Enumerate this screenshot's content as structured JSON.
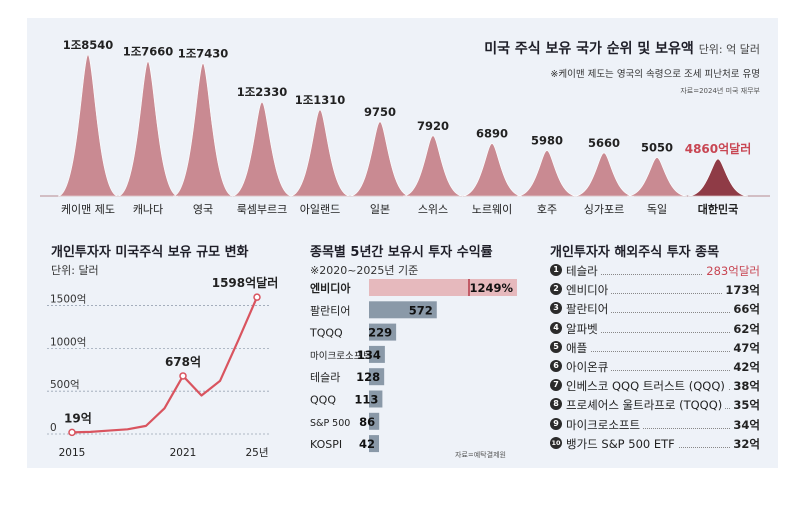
{
  "title": "미국 주식 보유 국가 순위 및 보유액",
  "title_unit": "단위: 억 달러",
  "note": "※케이맨 제도는 영국의 속령으로 조세 피난처로 유명",
  "source_top": "자료=2024년 미국 재무부",
  "colors": {
    "peak": "#c27880",
    "peak_korea": "#8f3b46",
    "bar": "#8a99a8",
    "bar_highlight": "#e6b9bd",
    "line": "#d9545f",
    "accent_text": "#c84653"
  },
  "chart_data": [
    {
      "type": "area",
      "categories": [
        "케이맨 제도",
        "캐나다",
        "영국",
        "룩셈부르크",
        "아일랜드",
        "일본",
        "스위스",
        "노르웨이",
        "호주",
        "싱가포르",
        "독일",
        "대한민국"
      ],
      "values": [
        18540,
        17660,
        17430,
        12330,
        11310,
        9750,
        7920,
        6890,
        5980,
        5660,
        5050,
        4860
      ],
      "value_labels": [
        "1조8540",
        "1조7660",
        "1조7430",
        "1조2330",
        "1조1310",
        "9750",
        "7920",
        "6890",
        "5980",
        "5660",
        "5050",
        "4860억달러"
      ],
      "highlight": "대한민국"
    },
    {
      "type": "line",
      "title": "개인투자자 미국주식 보유 규모 변화",
      "subtitle": "단위: 달러",
      "x": [
        2015,
        2016,
        2017,
        2018,
        2019,
        2020,
        2021,
        2022,
        2023,
        2024,
        2025
      ],
      "values": [
        19,
        25,
        40,
        55,
        95,
        300,
        678,
        450,
        620,
        1100,
        1598
      ],
      "ylim": [
        0,
        1600
      ],
      "y_ticks": [
        0,
        500,
        1000,
        1500
      ],
      "y_tick_labels": [
        "0",
        "500억",
        "1000억",
        "1500억"
      ],
      "x_tick_labels": [
        "2015",
        "2021",
        "25년"
      ],
      "x_tick_values": [
        2015,
        2021,
        2025
      ],
      "point_labels": [
        {
          "x": 2015,
          "label": "19억"
        },
        {
          "x": 2021,
          "label": "678억"
        },
        {
          "x": 2025,
          "label": "1598억달러"
        }
      ]
    },
    {
      "type": "bar",
      "title": "종목별 5년간 보유시 투자 수익률",
      "subtitle": "※2020~2025년 기준",
      "categories": [
        "엔비디아",
        "팔란티어",
        "TQQQ",
        "마이크로소프트",
        "테슬라",
        "QQQ",
        "S&P 500",
        "KOSPI"
      ],
      "values": [
        1249,
        572,
        229,
        134,
        128,
        113,
        86,
        42
      ],
      "value_labels": [
        "1249%",
        "572",
        "229",
        "134",
        "128",
        "113",
        "86",
        "42"
      ],
      "source": "자료=예탁결제원"
    }
  ],
  "ranking": {
    "title": "개인투자자 해외주식 투자 종목",
    "items": [
      {
        "num": "1",
        "name": "테슬라",
        "value": "283억달러",
        "highlight": true
      },
      {
        "num": "2",
        "name": "엔비디아",
        "value": "173억"
      },
      {
        "num": "3",
        "name": "팔란티어",
        "value": "66억"
      },
      {
        "num": "4",
        "name": "알파벳",
        "value": "62억"
      },
      {
        "num": "5",
        "name": "애플",
        "value": "47억"
      },
      {
        "num": "6",
        "name": "아이온큐",
        "value": "42억"
      },
      {
        "num": "7",
        "name": "인베스코 QQQ 트러스트 (QQQ)",
        "value": "38억"
      },
      {
        "num": "8",
        "name": "프로셰어스 울트라프로 (TQQQ)",
        "value": "35억"
      },
      {
        "num": "9",
        "name": "마이크로소프트",
        "value": "34억"
      },
      {
        "num": "10",
        "name": "뱅가드 S&P 500 ETF",
        "value": "32억"
      }
    ]
  }
}
